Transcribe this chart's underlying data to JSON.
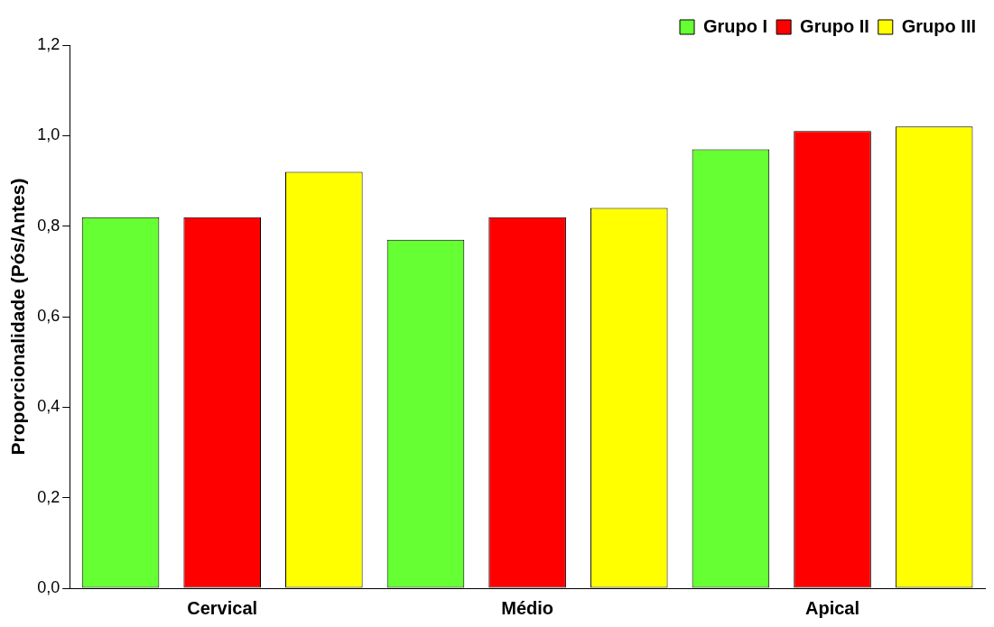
{
  "chart_data": {
    "type": "bar",
    "ylabel": "Proporcionalidade (Pós/Antes)",
    "categories": [
      "Cervical",
      "Médio",
      "Apical"
    ],
    "series": [
      {
        "name": "Grupo I",
        "color": "#66ff33",
        "values": [
          0.82,
          0.77,
          0.97
        ]
      },
      {
        "name": "Grupo II",
        "color": "#ff0000",
        "values": [
          0.82,
          0.82,
          1.01
        ]
      },
      {
        "name": "Grupo III",
        "color": "#ffff00",
        "values": [
          0.92,
          0.84,
          1.02
        ]
      }
    ],
    "ylim": [
      0,
      1.2
    ],
    "yticks": [
      {
        "value": 0,
        "label": "0,0"
      },
      {
        "value": 0.2,
        "label": "0,2"
      },
      {
        "value": 0.4,
        "label": "0,4"
      },
      {
        "value": 0.6,
        "label": "0,6"
      },
      {
        "value": 0.8,
        "label": "0,8"
      },
      {
        "value": 1,
        "label": "1,0"
      },
      {
        "value": 1.2,
        "label": "1,2"
      }
    ],
    "grid": false,
    "legend": "top right"
  }
}
